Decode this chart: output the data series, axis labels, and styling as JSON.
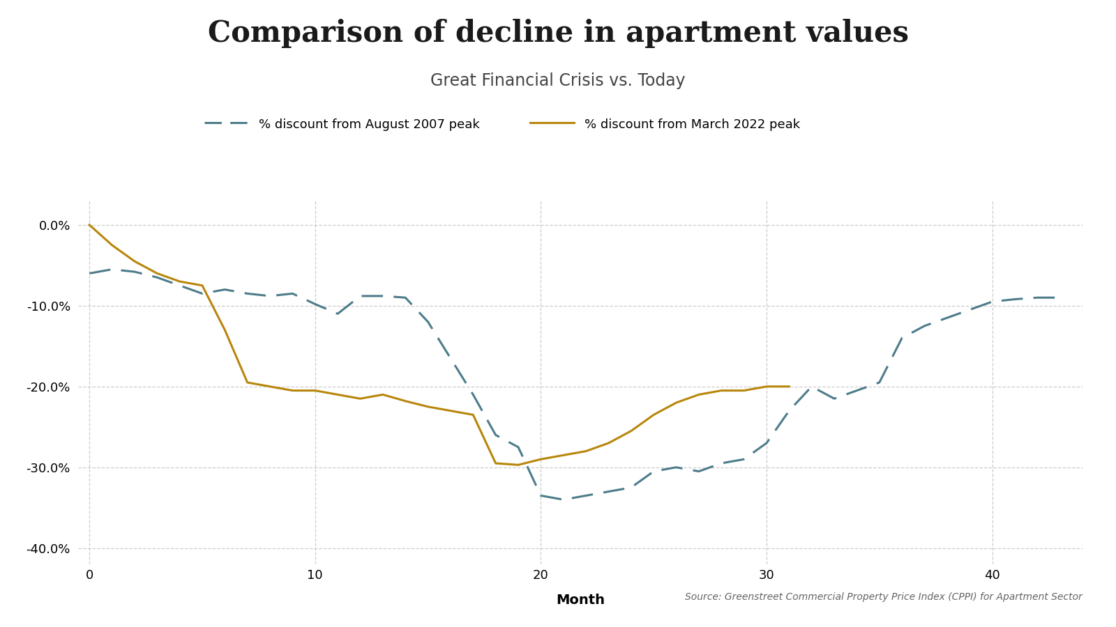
{
  "title": "Comparison of decline in apartment values",
  "subtitle": "Great Financial Crisis vs. Today",
  "xlabel": "Month",
  "source_text": "Source: Greenstreet Commercial Property Price Index (CPPI) for Apartment Sector",
  "legend1": "% discount from August 2007 peak",
  "legend2": "% discount from March 2022 peak",
  "gfc_x": [
    0,
    1,
    2,
    3,
    4,
    5,
    6,
    7,
    8,
    9,
    10,
    11,
    12,
    13,
    14,
    15,
    16,
    17,
    18,
    19,
    20,
    21,
    22,
    23,
    24,
    25,
    26,
    27,
    28,
    29,
    30,
    31,
    32,
    33,
    34,
    35,
    36,
    37,
    38,
    39,
    40,
    41,
    42,
    43
  ],
  "gfc_y": [
    -6.0,
    -5.5,
    -5.8,
    -6.5,
    -7.5,
    -8.5,
    -8.0,
    -8.5,
    -8.8,
    -8.5,
    -9.8,
    -11.0,
    -8.8,
    -8.8,
    -9.0,
    -12.0,
    -16.5,
    -21.0,
    -26.0,
    -27.5,
    -33.5,
    -34.0,
    -33.5,
    -33.0,
    -32.5,
    -30.5,
    -30.0,
    -30.5,
    -29.5,
    -29.0,
    -27.0,
    -23.0,
    -20.0,
    -21.5,
    -20.5,
    -19.5,
    -14.0,
    -12.5,
    -11.5,
    -10.5,
    -9.5,
    -9.2,
    -9.0,
    -9.0
  ],
  "today_x": [
    0,
    1,
    2,
    3,
    4,
    5,
    6,
    7,
    8,
    9,
    10,
    11,
    12,
    13,
    14,
    15,
    16,
    17,
    18,
    19,
    20,
    21,
    22,
    23,
    24,
    25,
    26,
    27,
    28,
    29,
    30,
    31
  ],
  "today_y": [
    0.0,
    -2.5,
    -4.5,
    -6.0,
    -7.0,
    -7.5,
    -13.0,
    -19.5,
    -20.0,
    -20.5,
    -20.5,
    -21.0,
    -21.5,
    -21.0,
    -21.8,
    -22.5,
    -23.0,
    -23.5,
    -29.5,
    -29.7,
    -29.0,
    -28.5,
    -28.0,
    -27.0,
    -25.5,
    -23.5,
    -22.0,
    -21.0,
    -20.5,
    -20.5,
    -20.0,
    -20.0
  ],
  "gfc_color": "#4d7c8a",
  "today_color": "#b8860b",
  "ylim": [
    -42,
    3
  ],
  "xlim": [
    -0.5,
    44
  ],
  "yticks": [
    0.0,
    -10.0,
    -20.0,
    -30.0,
    -40.0
  ],
  "xticks": [
    0,
    10,
    20,
    30,
    40
  ],
  "background_color": "#ffffff",
  "grid_color": "#c8c8c8",
  "title_fontsize": 30,
  "subtitle_fontsize": 17,
  "label_fontsize": 14,
  "tick_fontsize": 13,
  "legend_fontsize": 13
}
